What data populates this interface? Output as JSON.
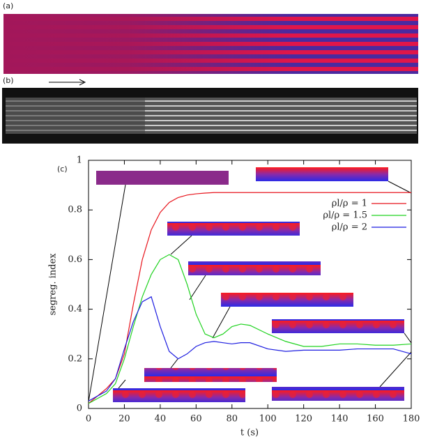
{
  "panel_labels": [
    "(a)",
    "(b)",
    "(c)"
  ],
  "chart_data": {
    "type": "line",
    "xlabel": "t (s)",
    "ylabel": "segreg. index",
    "x": [
      0,
      5,
      10,
      15,
      20,
      25,
      30,
      35,
      40,
      45,
      50,
      55,
      60,
      65,
      70,
      75,
      80,
      85,
      90,
      100,
      110,
      120,
      130,
      140,
      150,
      160,
      170,
      180
    ],
    "series": [
      {
        "name": "ρl/ρ = 1",
        "color": "#e8141c",
        "values": [
          0.02,
          0.05,
          0.08,
          0.12,
          0.22,
          0.42,
          0.6,
          0.72,
          0.79,
          0.83,
          0.85,
          0.86,
          0.865,
          0.868,
          0.87,
          0.87,
          0.87,
          0.87,
          0.87,
          0.87,
          0.87,
          0.87,
          0.87,
          0.87,
          0.87,
          0.87,
          0.87,
          0.87
        ]
      },
      {
        "name": "ρl/ρ = 1.5",
        "color": "#1ed21e",
        "values": [
          0.02,
          0.04,
          0.06,
          0.1,
          0.2,
          0.33,
          0.45,
          0.54,
          0.6,
          0.62,
          0.6,
          0.5,
          0.38,
          0.3,
          0.285,
          0.3,
          0.33,
          0.34,
          0.335,
          0.3,
          0.27,
          0.25,
          0.25,
          0.26,
          0.26,
          0.255,
          0.255,
          0.26
        ]
      },
      {
        "name": "ρl/ρ = 2",
        "color": "#1c1ce0",
        "values": [
          0.03,
          0.05,
          0.07,
          0.12,
          0.24,
          0.35,
          0.43,
          0.45,
          0.33,
          0.23,
          0.2,
          0.22,
          0.25,
          0.265,
          0.27,
          0.265,
          0.26,
          0.265,
          0.265,
          0.24,
          0.23,
          0.235,
          0.235,
          0.235,
          0.24,
          0.24,
          0.24,
          0.22
        ]
      }
    ],
    "xlim": [
      0,
      180
    ],
    "xticks": [
      0,
      20,
      40,
      60,
      80,
      100,
      120,
      140,
      160,
      180
    ],
    "ylim": [
      0,
      1
    ],
    "yticks": [
      0,
      0.2,
      0.4,
      0.6,
      0.8,
      1
    ],
    "legend": "upper right"
  }
}
